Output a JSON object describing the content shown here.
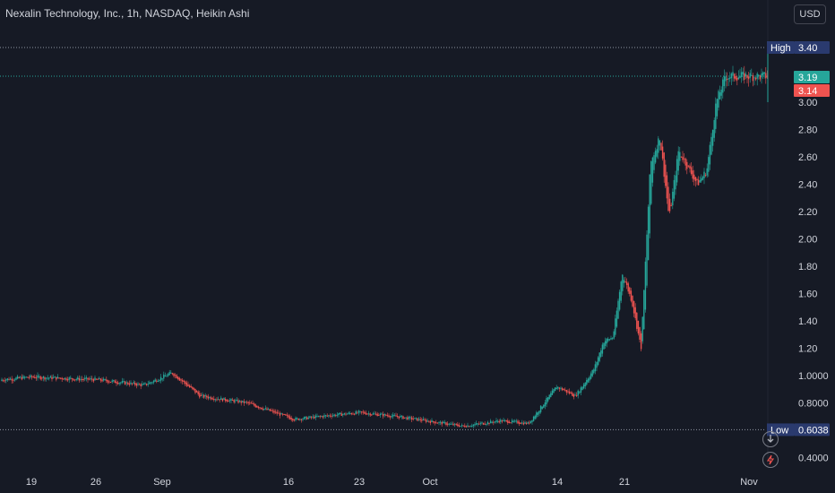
{
  "header": {
    "title": "Nexalin Technology, Inc., 1h, NASDAQ, Heikin Ashi",
    "currency": "USD"
  },
  "colors": {
    "background": "#161a25",
    "up": "#26a69a",
    "down": "#ef5350",
    "high_low_tag": "#2a3a6e",
    "text": "#d1d4dc",
    "dotted_high": "#8f95a3",
    "dotted_last": "#26a69a"
  },
  "icons": [
    "zoom-reset-icon",
    "magic-wand-icon"
  ],
  "chart_data": {
    "type": "candlestick",
    "style": "Heikin Ashi",
    "interval": "1h",
    "y_ticks": [
      "3.00",
      "2.80",
      "2.60",
      "2.40",
      "2.20",
      "2.00",
      "1.80",
      "1.60",
      "1.40",
      "1.20",
      "1.0000",
      "0.8000",
      "0.6000",
      "0.4000"
    ],
    "x_ticks": [
      "19",
      "26",
      "Sep",
      "16",
      "23",
      "Oct",
      "14",
      "21",
      "Nov"
    ],
    "price_tags": [
      {
        "label": "High",
        "value": "3.40",
        "kind": "high"
      },
      {
        "label": "",
        "value": "3.19",
        "kind": "up"
      },
      {
        "label": "",
        "value": "3.14",
        "kind": "down"
      },
      {
        "label": "Low",
        "value": "0.6038",
        "kind": "low"
      }
    ],
    "high": 3.4,
    "low": 0.6038,
    "last_up": 3.19,
    "last_down": 3.14,
    "grid": false,
    "price_path": [
      [
        "Aug 14",
        0.96
      ],
      [
        "Aug 19",
        0.99
      ],
      [
        "Aug 26",
        0.97
      ],
      [
        "Aug 31",
        0.93
      ],
      [
        "Sep 3",
        1.02
      ],
      [
        "Sep 6",
        0.85
      ],
      [
        "Sep 11",
        0.8
      ],
      [
        "Sep 16",
        0.68
      ],
      [
        "Sep 20",
        0.71
      ],
      [
        "Sep 23",
        0.73
      ],
      [
        "Sep 27",
        0.7
      ],
      [
        "Oct 1",
        0.66
      ],
      [
        "Oct 4",
        0.63
      ],
      [
        "Oct 8",
        0.67
      ],
      [
        "Oct 11",
        0.65
      ],
      [
        "Oct 14",
        0.92
      ],
      [
        "Oct 16",
        0.85
      ],
      [
        "Oct 18",
        1.05
      ],
      [
        "Oct 19",
        1.25
      ],
      [
        "Oct 20",
        1.28
      ],
      [
        "Oct 21",
        1.75
      ],
      [
        "Oct 22",
        1.55
      ],
      [
        "Oct 23",
        1.2
      ],
      [
        "Oct 24",
        2.55
      ],
      [
        "Oct 25",
        2.75
      ],
      [
        "Oct 26",
        2.15
      ],
      [
        "Oct 27",
        2.65
      ],
      [
        "Oct 29",
        2.4
      ],
      [
        "Oct 30",
        2.5
      ],
      [
        "Oct 31",
        3.0
      ],
      [
        "Nov 1",
        3.19
      ]
    ]
  }
}
